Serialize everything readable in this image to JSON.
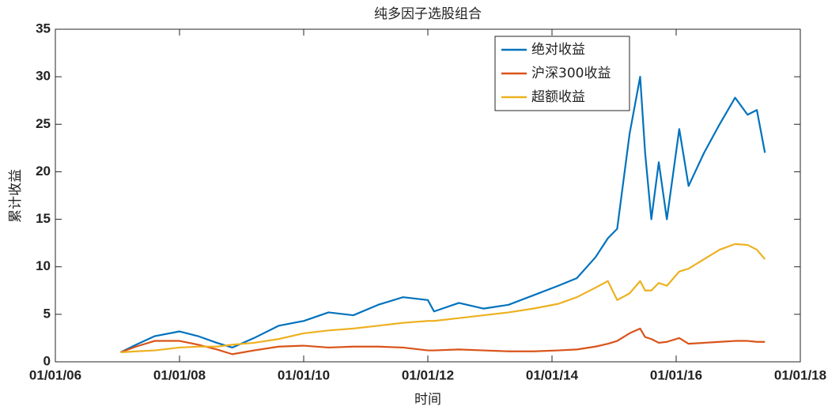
{
  "chart_data": {
    "type": "line",
    "title": "纯多因子选股组合",
    "x_label": "时间",
    "y_label": "累计收益",
    "x": [
      2007.05,
      2007.3,
      2007.6,
      2008.0,
      2008.3,
      2008.6,
      2008.85,
      2009.2,
      2009.6,
      2010.0,
      2010.4,
      2010.8,
      2011.2,
      2011.6,
      2012.0,
      2012.1,
      2012.5,
      2012.9,
      2013.3,
      2013.7,
      2014.1,
      2014.4,
      2014.7,
      2014.9,
      2015.05,
      2015.25,
      2015.42,
      2015.5,
      2015.6,
      2015.72,
      2015.85,
      2016.05,
      2016.2,
      2016.45,
      2016.7,
      2016.95,
      2017.15,
      2017.3,
      2017.43
    ],
    "series": [
      {
        "name": "绝对收益",
        "color": "#0072bd",
        "values": [
          1.0,
          1.8,
          2.7,
          3.2,
          2.7,
          2.0,
          1.5,
          2.5,
          3.8,
          4.3,
          5.2,
          4.9,
          6.0,
          6.8,
          6.5,
          5.3,
          6.2,
          5.6,
          6.0,
          7.0,
          8.0,
          8.8,
          11.0,
          13.0,
          14.0,
          24.0,
          30.0,
          22.0,
          15.0,
          21.0,
          15.0,
          24.5,
          18.5,
          22.0,
          25.0,
          27.8,
          26.0,
          26.5,
          22.0
        ]
      },
      {
        "name": "沪深300收益",
        "color": "#d95319",
        "values": [
          1.0,
          1.6,
          2.2,
          2.2,
          1.8,
          1.3,
          0.8,
          1.2,
          1.6,
          1.7,
          1.5,
          1.6,
          1.6,
          1.5,
          1.2,
          1.2,
          1.3,
          1.2,
          1.1,
          1.1,
          1.2,
          1.3,
          1.6,
          1.9,
          2.2,
          3.0,
          3.5,
          2.6,
          2.4,
          2.0,
          2.1,
          2.5,
          1.9,
          2.0,
          2.1,
          2.2,
          2.2,
          2.1,
          2.1
        ]
      },
      {
        "name": "超额收益",
        "color": "#edb120",
        "values": [
          1.0,
          1.1,
          1.2,
          1.5,
          1.6,
          1.6,
          1.8,
          2.0,
          2.4,
          3.0,
          3.3,
          3.5,
          3.8,
          4.1,
          4.3,
          4.3,
          4.6,
          4.9,
          5.2,
          5.6,
          6.1,
          6.8,
          7.8,
          8.5,
          6.5,
          7.2,
          8.5,
          7.5,
          7.5,
          8.3,
          8.0,
          9.5,
          9.8,
          10.8,
          11.8,
          12.4,
          12.3,
          11.8,
          10.8
        ]
      }
    ],
    "xlim": [
      2006,
      2018
    ],
    "xticks": [
      {
        "value": 2006,
        "label": "01/01/06"
      },
      {
        "value": 2008,
        "label": "01/01/08"
      },
      {
        "value": 2010,
        "label": "01/01/10"
      },
      {
        "value": 2012,
        "label": "01/01/12"
      },
      {
        "value": 2014,
        "label": "01/01/14"
      },
      {
        "value": 2016,
        "label": "01/01/16"
      },
      {
        "value": 2018,
        "label": "01/01/18"
      }
    ],
    "ylim": [
      0,
      35
    ],
    "yticks": [
      0,
      5,
      10,
      15,
      20,
      25,
      30,
      35
    ],
    "grid": false,
    "legend": "upper-right"
  }
}
